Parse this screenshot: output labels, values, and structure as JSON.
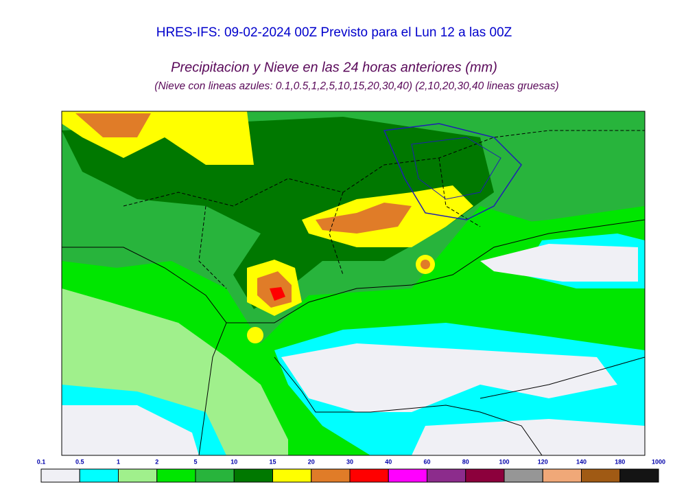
{
  "header": {
    "title": "HRES-IFS: 09-02-2024 00Z Previsto para el Lun 12 a las 00Z",
    "subtitle": "Precipitacion y Nieve en las 24 horas anteriores (mm)",
    "note": "(Nieve con lineas azules: 0.1,0.5,1,2,5,10,15,20,30,40)  (2,10,20,30,40 lineas gruesas)"
  },
  "colorbar": {
    "ticks": [
      0.1,
      0.5,
      1,
      2,
      5,
      10,
      15,
      20,
      30,
      40,
      60,
      80,
      100,
      120,
      140,
      180,
      1000
    ],
    "colors": [
      "#f0f0f5",
      "#00ffff",
      "#a0f08c",
      "#00e600",
      "#28b43c",
      "#007800",
      "#ffff00",
      "#e07c28",
      "#ff0000",
      "#ff00ff",
      "#8c2c8c",
      "#8c003c",
      "#969696",
      "#f0a878",
      "#a05a14",
      "#141414"
    ]
  }
}
